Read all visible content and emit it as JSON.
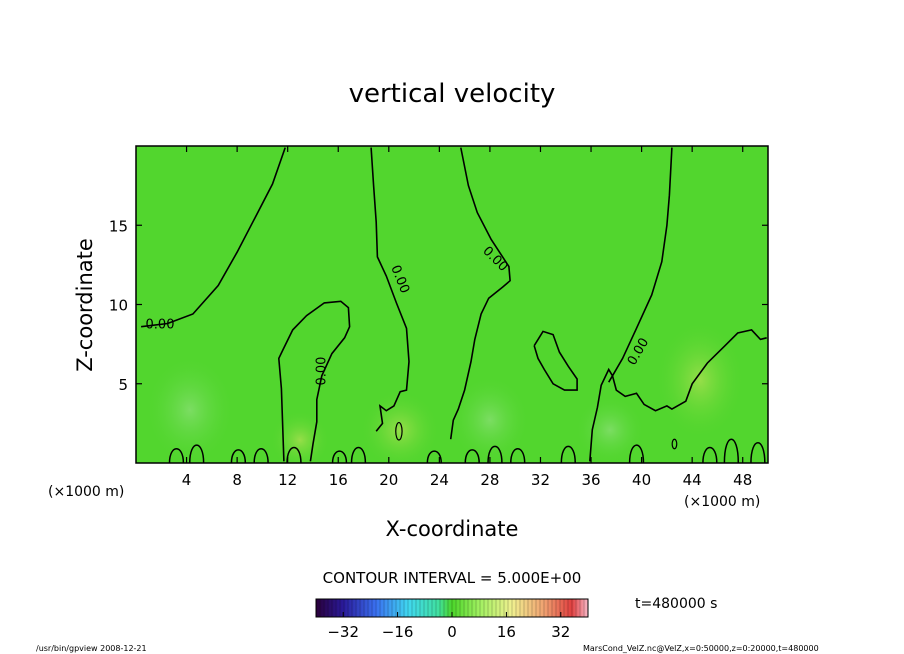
{
  "chart_data": {
    "type": "heatmap",
    "title": "vertical velocity",
    "xlabel": "X-coordinate",
    "ylabel": "Z-coordinate",
    "xlim": [
      0,
      50
    ],
    "ylim": [
      0,
      20
    ],
    "x_ticks": [
      4,
      8,
      12,
      16,
      20,
      24,
      28,
      32,
      36,
      40,
      44,
      48
    ],
    "y_ticks": [
      5,
      10,
      15
    ],
    "x_unit_left": "(×1000 m)",
    "x_unit_right": "(×1000 m)",
    "contour_label": "0.00",
    "contour_interval": "CONTOUR INTERVAL = 5.000E+00",
    "time_label": "t=480000 s",
    "colorbar": {
      "min": -40,
      "max": 40,
      "ticks": [
        -32,
        -16,
        0,
        16,
        32
      ],
      "tick_labels": [
        "−32",
        "−16",
        "0",
        "16",
        "32"
      ]
    },
    "zero_contours": [
      {
        "name": "c1",
        "points": [
          [
            0.4,
            8.6
          ],
          [
            2.5,
            8.8
          ],
          [
            4.5,
            9.4
          ],
          [
            6.5,
            11.2
          ],
          [
            8,
            13.3
          ],
          [
            9.5,
            15.6
          ],
          [
            10.8,
            17.6
          ],
          [
            11.8,
            19.9
          ]
        ]
      },
      {
        "name": "c2",
        "points": [
          [
            18.6,
            19.9
          ],
          [
            18.8,
            17.5
          ],
          [
            19,
            15.2
          ],
          [
            19.1,
            13
          ],
          [
            19.8,
            11.8
          ],
          [
            20.6,
            10.1
          ],
          [
            21.4,
            8.5
          ],
          [
            21.6,
            6.4
          ],
          [
            21.4,
            4.6
          ],
          [
            20.9,
            4.5
          ],
          [
            20.4,
            3.6
          ],
          [
            19.8,
            3.3
          ],
          [
            19.3,
            3.6
          ],
          [
            19.5,
            2.5
          ],
          [
            19,
            2
          ]
        ]
      },
      {
        "name": "c3",
        "points": [
          [
            25.7,
            19.9
          ],
          [
            26.3,
            17.5
          ],
          [
            27,
            15.8
          ],
          [
            28.1,
            14.1
          ],
          [
            29.5,
            12.4
          ],
          [
            29.6,
            11.5
          ],
          [
            29,
            11.1
          ],
          [
            27.9,
            10.4
          ],
          [
            27.3,
            9.4
          ],
          [
            26.8,
            7.8
          ],
          [
            26.5,
            6.4
          ],
          [
            26,
            4.6
          ],
          [
            25.5,
            3.4
          ],
          [
            25.1,
            2.7
          ],
          [
            24.9,
            1.5
          ]
        ]
      },
      {
        "name": "c4",
        "points": [
          [
            42.4,
            19.9
          ],
          [
            42.2,
            16.9
          ],
          [
            42,
            15
          ],
          [
            41.6,
            12.7
          ],
          [
            40.8,
            10.6
          ],
          [
            39.6,
            8.5
          ],
          [
            38.5,
            6.6
          ],
          [
            37.7,
            5.5
          ],
          [
            37.4,
            5.1
          ]
        ]
      },
      {
        "name": "c5",
        "points": [
          [
            11.7,
            0.1
          ],
          [
            11.5,
            4.7
          ],
          [
            11.3,
            6.6
          ],
          [
            11.6,
            7.1
          ],
          [
            12.4,
            8.4
          ],
          [
            13.5,
            9.3
          ],
          [
            14.9,
            10.1
          ],
          [
            16.2,
            10.2
          ],
          [
            16.8,
            9.8
          ],
          [
            16.9,
            8.6
          ],
          [
            16.5,
            7.9
          ],
          [
            15.5,
            6.9
          ],
          [
            14.7,
            5.5
          ],
          [
            14.3,
            4
          ],
          [
            14.3,
            2.6
          ],
          [
            14,
            1.2
          ],
          [
            13.8,
            0.1
          ]
        ]
      },
      {
        "name": "c6",
        "points": [
          [
            31.5,
            7.4
          ],
          [
            32.2,
            8.3
          ],
          [
            33,
            8.1
          ],
          [
            33.5,
            7
          ],
          [
            34.2,
            6.1
          ],
          [
            34.9,
            5.3
          ],
          [
            34.9,
            4.6
          ],
          [
            33.9,
            4.6
          ],
          [
            33,
            5
          ],
          [
            32.3,
            5.9
          ],
          [
            31.8,
            6.6
          ],
          [
            31.5,
            7.4
          ]
        ]
      },
      {
        "name": "c7",
        "points": [
          [
            35.9,
            0.1
          ],
          [
            36.1,
            2.1
          ],
          [
            36.5,
            3.5
          ],
          [
            36.8,
            4.9
          ],
          [
            37.4,
            5.9
          ],
          [
            37.7,
            5.5
          ],
          [
            38,
            4.6
          ],
          [
            38.7,
            4.2
          ],
          [
            39.6,
            4.4
          ],
          [
            40.2,
            3.7
          ],
          [
            41.1,
            3.3
          ],
          [
            42,
            3.6
          ],
          [
            42.4,
            3.4
          ],
          [
            43.5,
            3.9
          ],
          [
            44,
            5
          ],
          [
            45.2,
            6.3
          ],
          [
            46.6,
            7.4
          ],
          [
            47.6,
            8.2
          ],
          [
            48.7,
            8.4
          ],
          [
            49.4,
            7.8
          ],
          [
            49.9,
            7.9
          ]
        ]
      }
    ],
    "small_contours": [
      {
        "name": "s1",
        "cx": 20.8,
        "cy": 2,
        "rx": 0.25,
        "ry": 0.55
      },
      {
        "name": "s2",
        "cx": 42.6,
        "cy": 1.2,
        "rx": 0.18,
        "ry": 0.3
      }
    ],
    "footer_left": "/usr/bin/gpview   2008-12-21",
    "footer_right": "MarsCond_VelZ.nc@VelZ,x=0:50000,z=0:20000,t=480000"
  }
}
